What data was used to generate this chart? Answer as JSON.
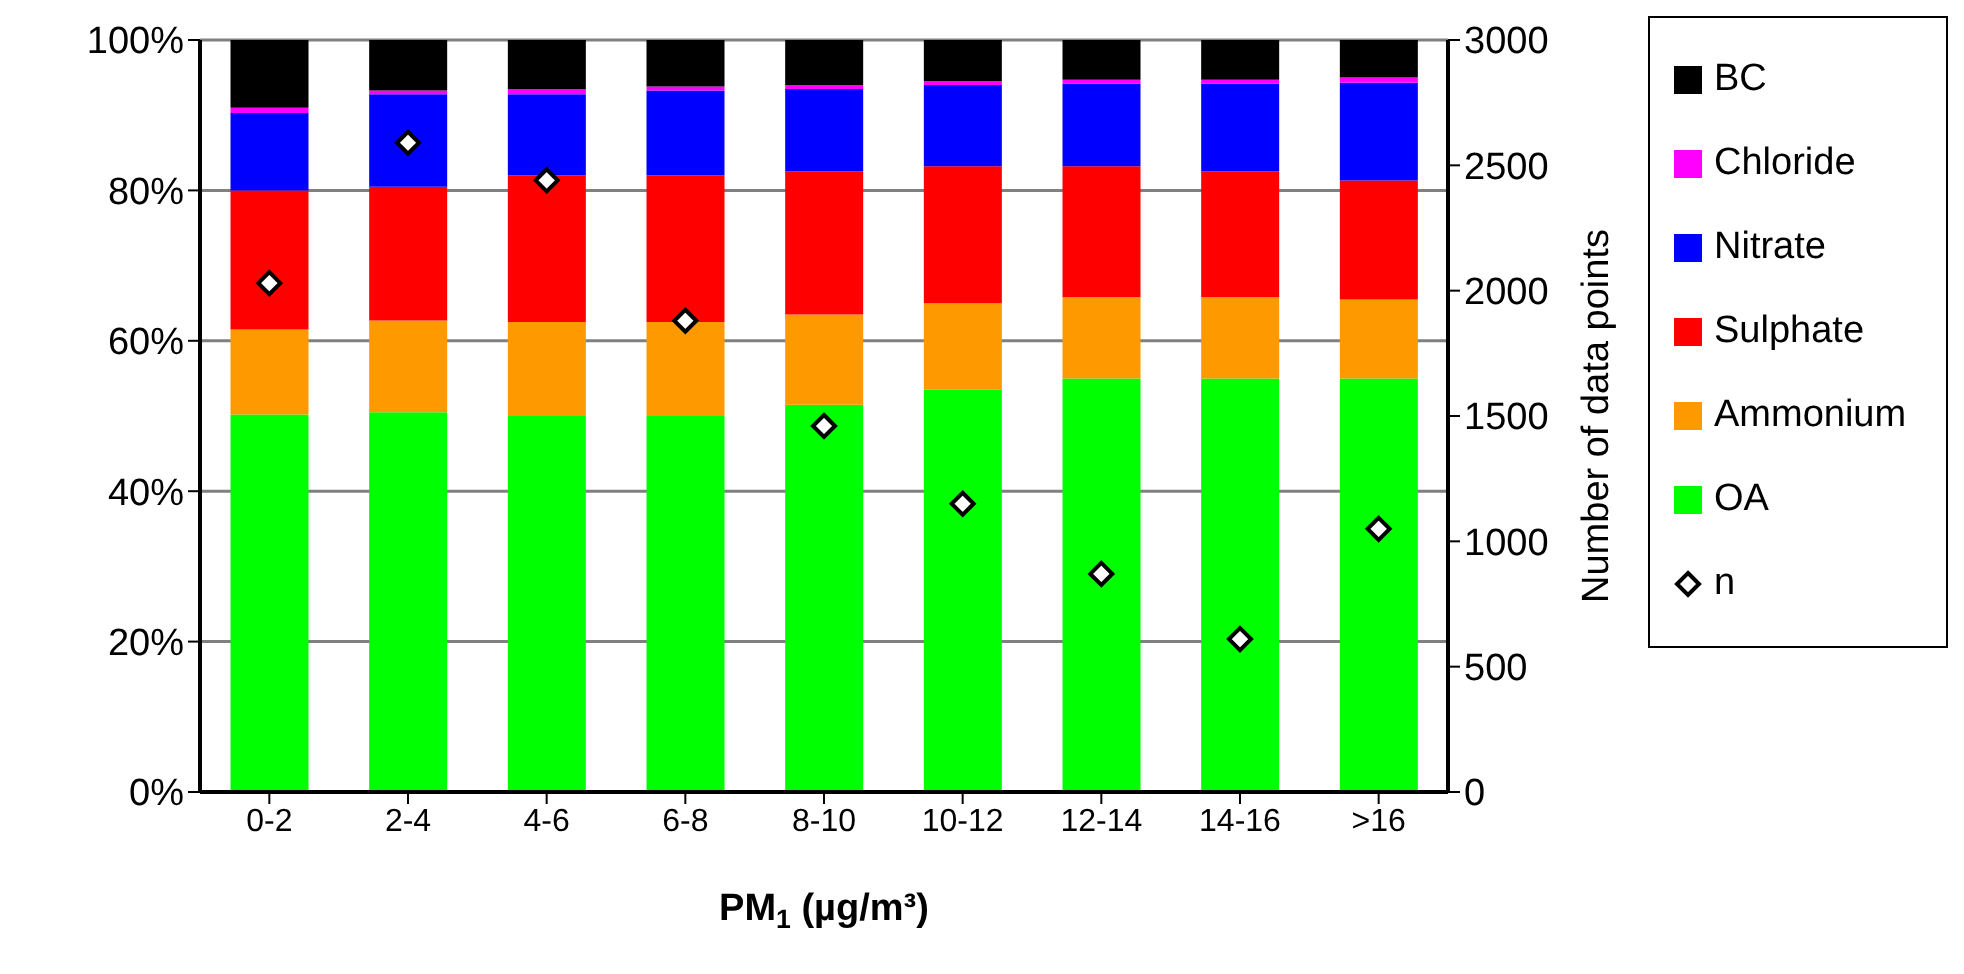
{
  "chart_data": {
    "type": "bar",
    "stacked": true,
    "xlabel": "PM$_{1}$ (µg/m³)",
    "y2label": "Number of data points",
    "categories": [
      "0-2",
      "2-4",
      "4-6",
      "6-8",
      "8-10",
      "10-12",
      "12-14",
      "14-16",
      ">16"
    ],
    "series": [
      {
        "name": "OA",
        "color": "#00ff00",
        "values": [
          50.2,
          50.5,
          50,
          50,
          51.5,
          53.5,
          55,
          55,
          55
        ]
      },
      {
        "name": "Ammonium",
        "color": "#ff9900",
        "values": [
          11.3,
          12.2,
          12.5,
          12.5,
          12,
          11.5,
          10.8,
          10.8,
          10.5
        ]
      },
      {
        "name": "Sulphate",
        "color": "#ff0000",
        "values": [
          18.5,
          17.8,
          19.5,
          19.5,
          19,
          18.2,
          17.4,
          16.7,
          15.8
        ]
      },
      {
        "name": "Nitrate",
        "color": "#0000ff",
        "values": [
          10.3,
          12.3,
          10.8,
          11.3,
          11,
          10.8,
          11,
          11.7,
          13
        ]
      },
      {
        "name": "Chloride",
        "color": "#ff00ff",
        "values": [
          0.7,
          0.5,
          0.7,
          0.5,
          0.5,
          0.5,
          0.5,
          0.5,
          0.7
        ]
      },
      {
        "name": "BC",
        "color": "#000000",
        "values": [
          9,
          6.7,
          6.5,
          6.2,
          6,
          5.5,
          5.3,
          5.3,
          5
        ]
      },
      {
        "name": "n",
        "type": "scatter",
        "axis": "y2",
        "marker": "diamond",
        "color": "#ffffff",
        "values": [
          2030,
          2590,
          2440,
          1880,
          1460,
          1150,
          870,
          610,
          1050
        ]
      }
    ],
    "ylim": [
      0,
      100
    ],
    "yticks": [
      {
        "value": 0,
        "label": "0%"
      },
      {
        "value": 20,
        "label": "20%"
      },
      {
        "value": 40,
        "label": "40%"
      },
      {
        "value": 60,
        "label": "60%"
      },
      {
        "value": 80,
        "label": "80%"
      },
      {
        "value": 100,
        "label": "100%"
      }
    ],
    "y2lim": [
      0,
      3000
    ],
    "y2ticks": [
      0,
      500,
      1000,
      1500,
      2000,
      2500,
      3000
    ],
    "grid": "y",
    "legend": "right"
  }
}
